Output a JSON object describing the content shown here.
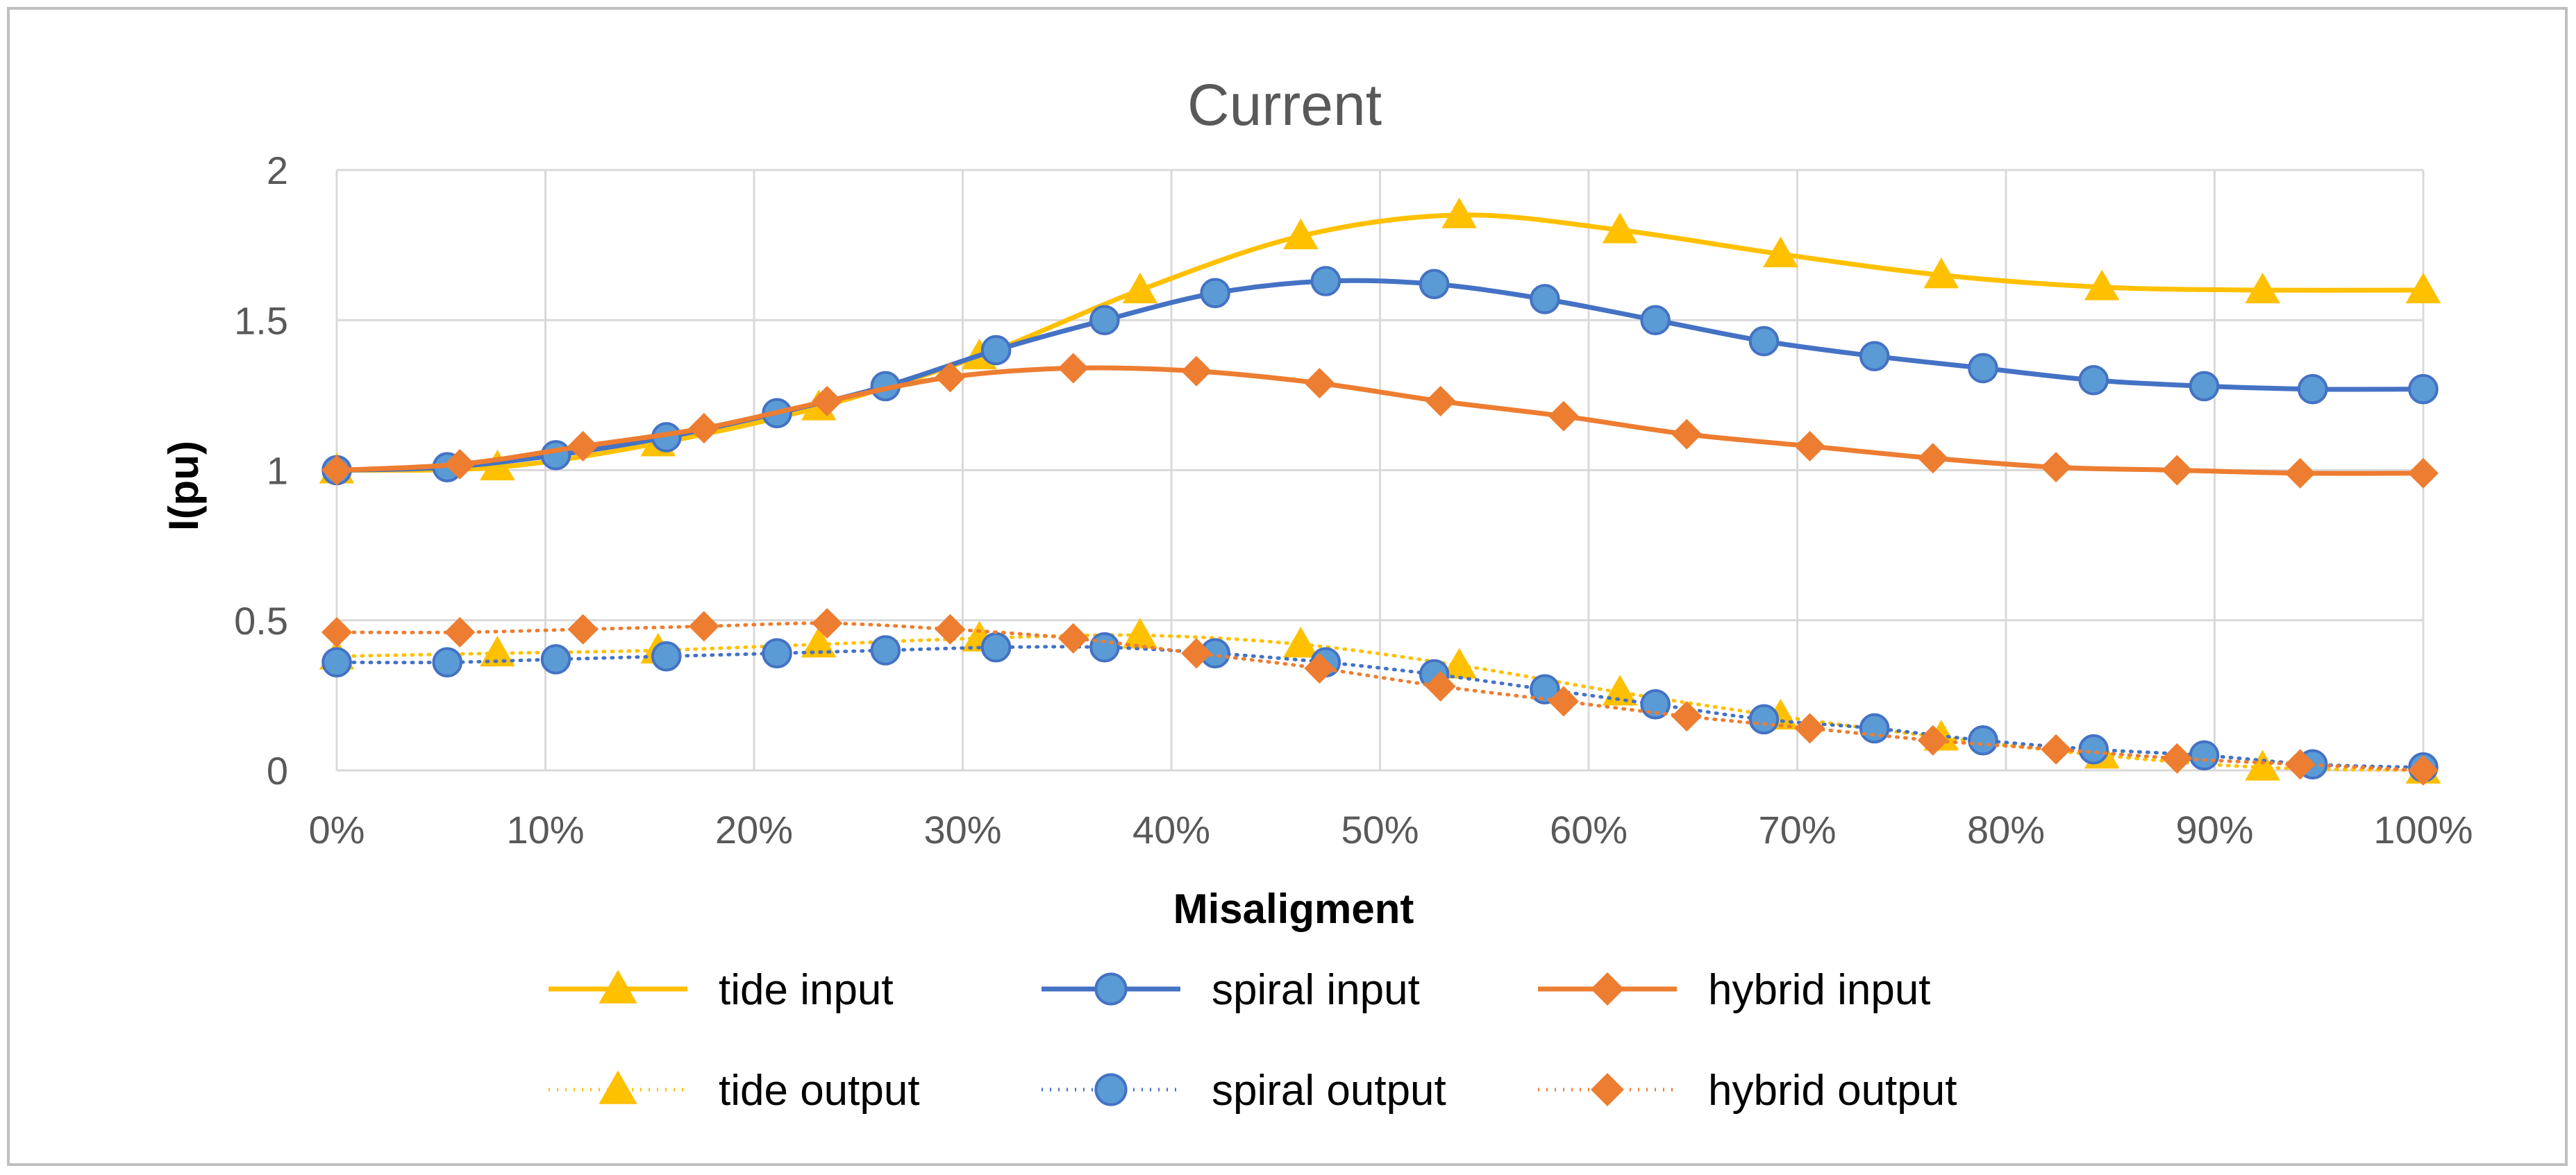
{
  "chart_data": {
    "type": "line",
    "title": "Current",
    "xlabel": "Misaligment",
    "ylabel": "I(pu)",
    "xlim": [
      0,
      100
    ],
    "ylim": [
      0,
      2
    ],
    "grid": true,
    "legend_position": "bottom",
    "x_tick_labels": [
      "0%",
      "10%",
      "20%",
      "30%",
      "40%",
      "50%",
      "60%",
      "70%",
      "80%",
      "90%",
      "100%"
    ],
    "y_tick_labels": [
      "0",
      "0.5",
      "1",
      "1.5",
      "2"
    ],
    "series": [
      {
        "name": "tide input",
        "color": "#ffc000",
        "marker": "triangle",
        "dash": "solid",
        "x": [
          0,
          7.7,
          15.4,
          23.1,
          30.8,
          38.5,
          46.2,
          53.8,
          61.5,
          69.2,
          76.9,
          84.6,
          92.3,
          100
        ],
        "y": [
          1.0,
          1.01,
          1.09,
          1.21,
          1.38,
          1.6,
          1.78,
          1.85,
          1.8,
          1.72,
          1.65,
          1.61,
          1.6,
          1.6
        ]
      },
      {
        "name": "spiral input",
        "color": "#4472c4",
        "marker": "circle",
        "dash": "solid",
        "x": [
          0,
          5.3,
          10.5,
          15.8,
          21.1,
          26.3,
          31.6,
          36.8,
          42.1,
          47.4,
          52.6,
          57.9,
          63.2,
          68.4,
          73.7,
          78.9,
          84.2,
          89.5,
          94.7,
          100
        ],
        "y": [
          1.0,
          1.01,
          1.05,
          1.11,
          1.19,
          1.28,
          1.4,
          1.5,
          1.59,
          1.63,
          1.62,
          1.57,
          1.5,
          1.43,
          1.38,
          1.34,
          1.3,
          1.28,
          1.27,
          1.27
        ]
      },
      {
        "name": "hybrid input",
        "color": "#ed7d31",
        "marker": "diamond",
        "dash": "solid",
        "x": [
          0,
          5.9,
          11.8,
          17.6,
          23.5,
          29.4,
          35.3,
          41.2,
          47.1,
          52.9,
          58.8,
          64.7,
          70.6,
          76.5,
          82.4,
          88.2,
          94.1,
          100
        ],
        "y": [
          1.0,
          1.02,
          1.08,
          1.14,
          1.23,
          1.31,
          1.34,
          1.33,
          1.29,
          1.23,
          1.18,
          1.12,
          1.08,
          1.04,
          1.01,
          1.0,
          0.99,
          0.99
        ]
      },
      {
        "name": "tide output",
        "color": "#ffc000",
        "marker": "triangle",
        "dash": "dotted",
        "x": [
          0,
          7.7,
          15.4,
          23.1,
          30.8,
          38.5,
          46.2,
          53.8,
          61.5,
          69.2,
          76.9,
          84.6,
          92.3,
          100
        ],
        "y": [
          0.38,
          0.39,
          0.4,
          0.42,
          0.44,
          0.45,
          0.42,
          0.35,
          0.26,
          0.18,
          0.11,
          0.05,
          0.01,
          0.0
        ]
      },
      {
        "name": "spiral output",
        "color": "#4472c4",
        "marker": "circle",
        "dash": "dotted",
        "x": [
          0,
          5.3,
          10.5,
          15.8,
          21.1,
          26.3,
          31.6,
          36.8,
          42.1,
          47.4,
          52.6,
          57.9,
          63.2,
          68.4,
          73.7,
          78.9,
          84.2,
          89.5,
          94.7,
          100
        ],
        "y": [
          0.36,
          0.36,
          0.37,
          0.38,
          0.39,
          0.4,
          0.41,
          0.41,
          0.39,
          0.36,
          0.32,
          0.27,
          0.22,
          0.17,
          0.14,
          0.1,
          0.07,
          0.05,
          0.02,
          0.01
        ]
      },
      {
        "name": "hybrid output",
        "color": "#ed7d31",
        "marker": "diamond",
        "dash": "dotted",
        "x": [
          0,
          5.9,
          11.8,
          17.6,
          23.5,
          29.4,
          35.3,
          41.2,
          47.1,
          52.9,
          58.8,
          64.7,
          70.6,
          76.5,
          82.4,
          88.2,
          94.1,
          100
        ],
        "y": [
          0.46,
          0.46,
          0.47,
          0.48,
          0.49,
          0.47,
          0.44,
          0.39,
          0.34,
          0.28,
          0.23,
          0.18,
          0.14,
          0.1,
          0.07,
          0.04,
          0.02,
          0.0
        ]
      }
    ]
  }
}
